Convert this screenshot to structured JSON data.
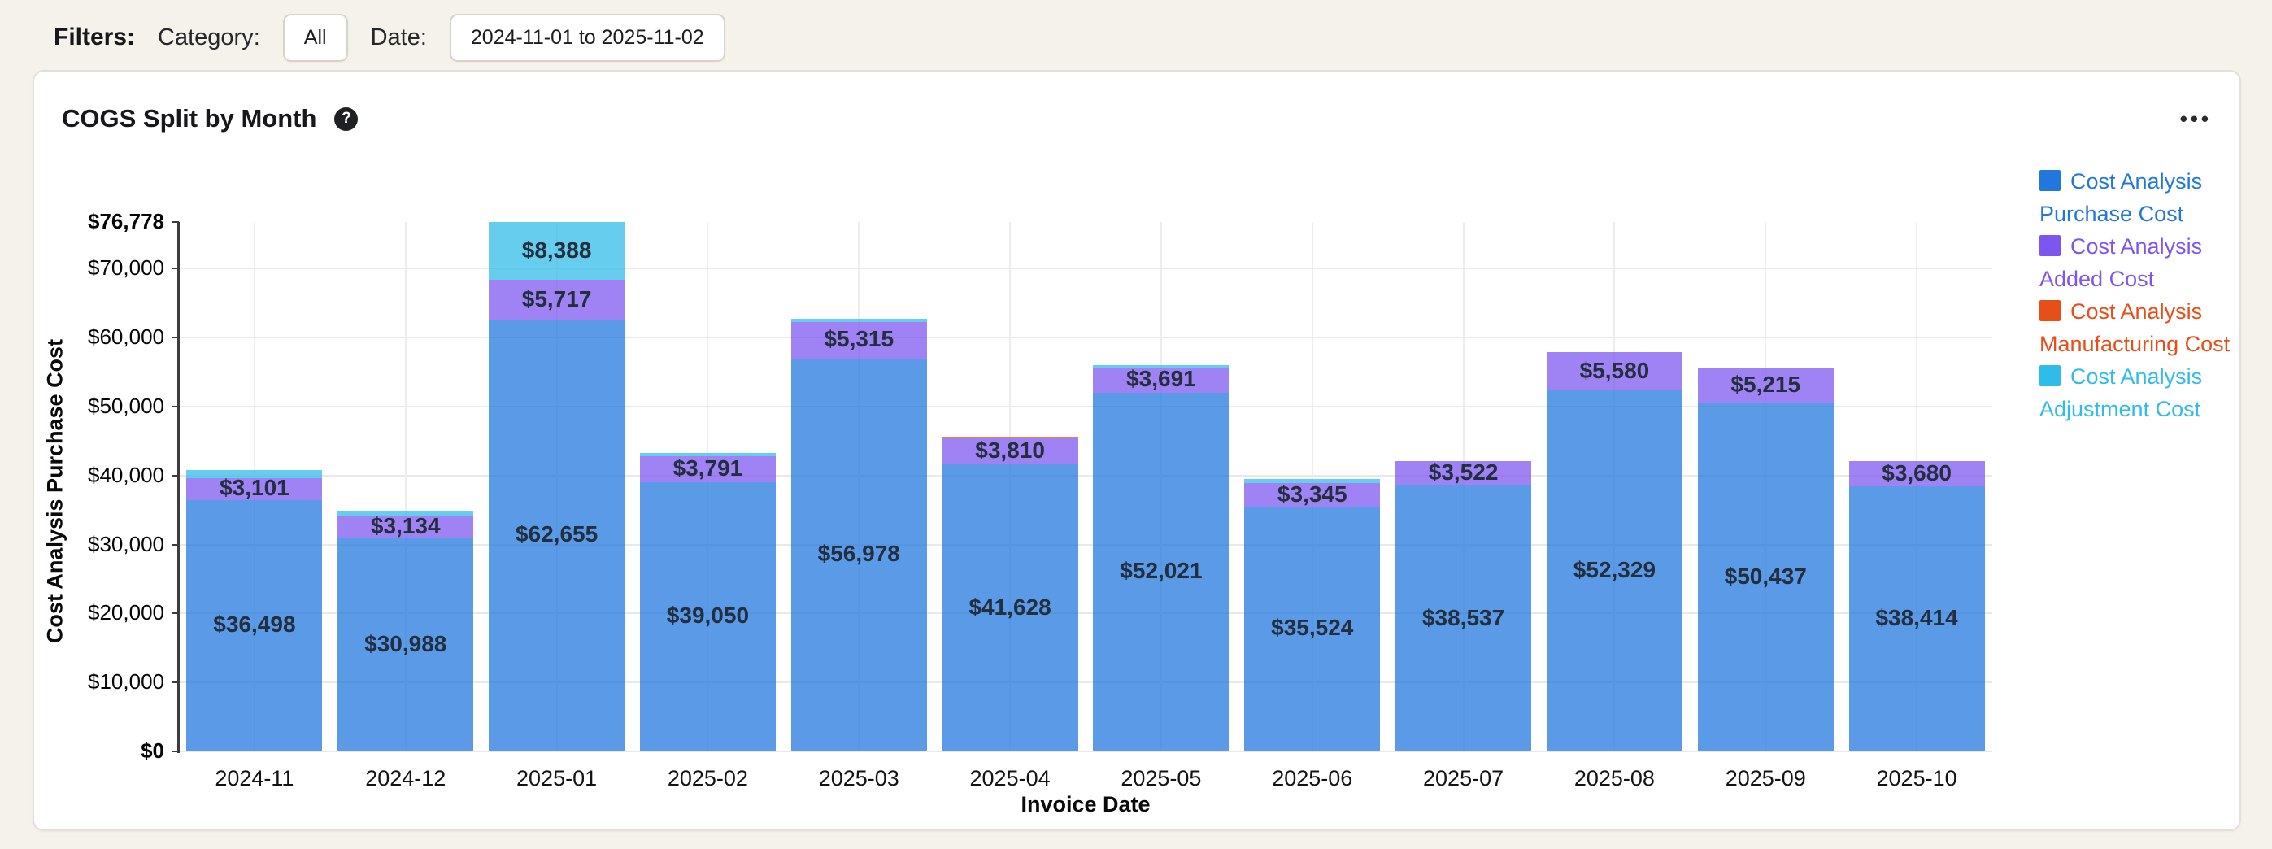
{
  "filters": {
    "title": "Filters:",
    "category_label": "Category:",
    "category_value": "All",
    "date_label": "Date:",
    "date_value": "2024-11-01 to 2025-11-02"
  },
  "card": {
    "title": "COGS Split by Month",
    "help_icon": "?",
    "menu_icon": "•••"
  },
  "chart_data": {
    "type": "bar",
    "stacked": true,
    "title": "COGS Split by Month",
    "xlabel": "Invoice Date",
    "ylabel": "Cost Analysis Purchase Cost",
    "ylim": [
      0,
      76778
    ],
    "grid": true,
    "legend_position": "right",
    "yticks": [
      {
        "value": 0,
        "label": "$0",
        "bold": true
      },
      {
        "value": 10000,
        "label": "$10,000",
        "bold": false
      },
      {
        "value": 20000,
        "label": "$20,000",
        "bold": false
      },
      {
        "value": 30000,
        "label": "$30,000",
        "bold": false
      },
      {
        "value": 40000,
        "label": "$40,000",
        "bold": false
      },
      {
        "value": 50000,
        "label": "$50,000",
        "bold": false
      },
      {
        "value": 60000,
        "label": "$60,000",
        "bold": false
      },
      {
        "value": 70000,
        "label": "$70,000",
        "bold": false
      },
      {
        "value": 76778,
        "label": "$76,778",
        "bold": true
      }
    ],
    "categories": [
      "2024-11",
      "2024-12",
      "2025-01",
      "2025-02",
      "2025-03",
      "2025-04",
      "2025-05",
      "2025-06",
      "2025-07",
      "2025-08",
      "2025-09",
      "2025-10"
    ],
    "series": [
      {
        "name": "Cost Analysis Purchase Cost",
        "color": "#2277dd",
        "values": [
          36498,
          30988,
          62655,
          39050,
          56978,
          41628,
          52021,
          35524,
          38537,
          52329,
          50437,
          38414
        ],
        "labels": [
          "$36,498",
          "$30,988",
          "$62,655",
          "$39,050",
          "$56,978",
          "$41,628",
          "$52,021",
          "$35,524",
          "$38,537",
          "$52,329",
          "$50,437",
          "$38,414"
        ]
      },
      {
        "name": "Cost Analysis Added Cost",
        "color": "#7d56ef",
        "values": [
          3101,
          3134,
          5717,
          3791,
          5315,
          3810,
          3691,
          3345,
          3522,
          5580,
          5215,
          3680
        ],
        "labels": [
          "$3,101",
          "$3,134",
          "$5,717",
          "$3,791",
          "$5,315",
          "$3,810",
          "$3,691",
          "$3,345",
          "$3,522",
          "$5,580",
          "$5,215",
          "$3,680"
        ]
      },
      {
        "name": "Cost Analysis Manufacturing Cost",
        "color": "#e84e17",
        "values": [
          0,
          0,
          0,
          0,
          0,
          150,
          0,
          0,
          0,
          0,
          0,
          0
        ],
        "labels": [
          "",
          "",
          "",
          "",
          "",
          "",
          "",
          "",
          "",
          "",
          "",
          ""
        ]
      },
      {
        "name": "Cost Analysis Adjustment Cost",
        "color": "#30bce8",
        "values": [
          1150,
          800,
          8388,
          500,
          400,
          0,
          350,
          650,
          0,
          0,
          0,
          0
        ],
        "labels": [
          "",
          "",
          "$8,388",
          "",
          "",
          "",
          "",
          "",
          "",
          "",
          "",
          ""
        ]
      }
    ]
  }
}
